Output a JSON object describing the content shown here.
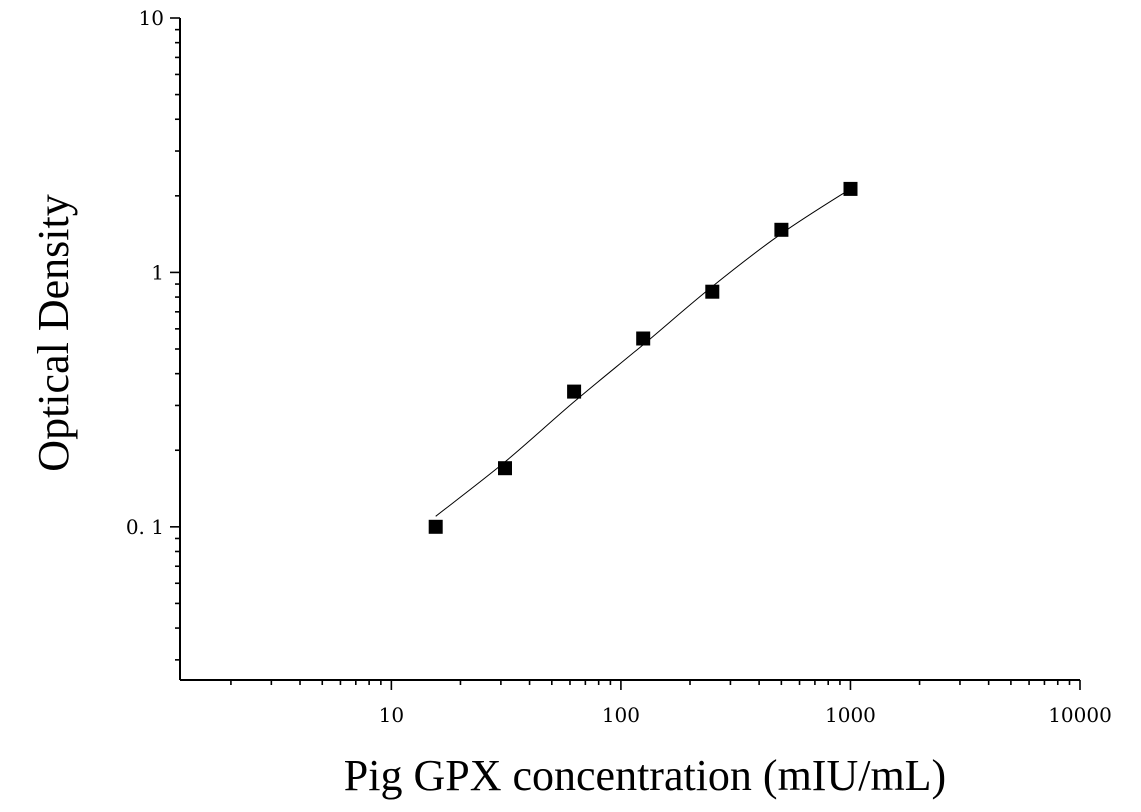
{
  "chart_data": {
    "type": "scatter",
    "title": "",
    "xlabel": "Pig GPX concentration (mIU/mL)",
    "ylabel": "Optical Density",
    "x_scale": "log",
    "y_scale": "log",
    "xlim": [
      1.2,
      10000
    ],
    "ylim": [
      0.025,
      10
    ],
    "x_ticks": [
      {
        "value": 10,
        "label": "10"
      },
      {
        "value": 100,
        "label": "100"
      },
      {
        "value": 1000,
        "label": "1000"
      },
      {
        "value": 10000,
        "label": "10000"
      }
    ],
    "y_ticks": [
      {
        "value": 0.1,
        "label": "0. 1"
      },
      {
        "value": 1,
        "label": "1"
      },
      {
        "value": 10,
        "label": "10"
      }
    ],
    "grid": false,
    "legend": "none",
    "marker_color": "#000000",
    "series": [
      {
        "points": [
          {
            "x": 15.6,
            "y": 0.1
          },
          {
            "x": 31.25,
            "y": 0.17
          },
          {
            "x": 62.5,
            "y": 0.34
          },
          {
            "x": 125,
            "y": 0.55
          },
          {
            "x": 250,
            "y": 0.84
          },
          {
            "x": 500,
            "y": 1.47
          },
          {
            "x": 1000,
            "y": 2.13
          }
        ],
        "fit_curve": [
          {
            "x": 15.6,
            "y": 0.11
          },
          {
            "x": 31.25,
            "y": 0.18
          },
          {
            "x": 62.5,
            "y": 0.31
          },
          {
            "x": 125,
            "y": 0.52
          },
          {
            "x": 250,
            "y": 0.88
          },
          {
            "x": 500,
            "y": 1.42
          },
          {
            "x": 1000,
            "y": 2.13
          }
        ]
      }
    ]
  }
}
